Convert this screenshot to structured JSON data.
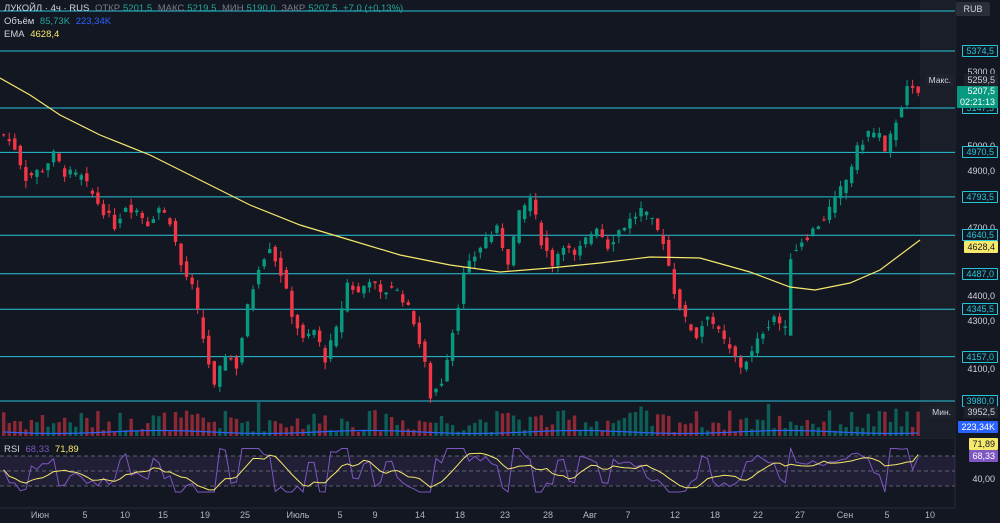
{
  "header": {
    "symbol": "ЛУКОЙЛ · 4ч · RUS",
    "open_label": "ОТКР",
    "open": "5201,5",
    "high_label": "МАКС",
    "high": "5219,5",
    "low_label": "МИН",
    "low": "5190,0",
    "close_label": "ЗАКР",
    "close": "5207,5",
    "change": "+7,0 (+0,13%)",
    "volume_label": "Объём",
    "volume_value": "85,73K",
    "volume_ma": "223,34K",
    "ema_label": "EMA",
    "ema_value": "4628,4",
    "currency": "RUB"
  },
  "price_axis": {
    "ticks": [
      "5300,0",
      "5000,0",
      "4900,0",
      "4700,0",
      "4400,0",
      "4300,0",
      "4100,0",
      "40,00"
    ],
    "max_label": "Макс.",
    "max_value": "5259,5",
    "min_label": "Мин.",
    "min_value": "3952,5",
    "current_price": "5207,5",
    "countdown": "02:21:13",
    "ema_tag": "4628,4",
    "volume_tag": "223,34K",
    "rsi_tags": [
      "71,89",
      "68,33"
    ]
  },
  "rsi": {
    "label": "RSI",
    "value": "68,33",
    "ma_value": "71,89"
  },
  "time_axis": [
    "Июн",
    "5",
    "10",
    "15",
    "19",
    "25",
    "Июль",
    "5",
    "9",
    "14",
    "18",
    "23",
    "28",
    "Авг",
    "7",
    "12",
    "18",
    "22",
    "27",
    "Сен",
    "5",
    "10"
  ],
  "chart_data": {
    "type": "candlestick",
    "title": "ЛУКОЙЛ · 4ч · RUS",
    "ylim": [
      3952.5,
      5374.5
    ],
    "levels": [
      5374.5,
      5147.5,
      4970.5,
      4793.5,
      4640.5,
      4487.0,
      4345.5,
      4157.0,
      3980.0
    ],
    "level_labels": [
      "5374,5",
      "5147,5",
      "4970,5",
      "4793,5",
      "4640,5",
      "4487,0",
      "4345,5",
      "4157,0",
      "3980,0"
    ],
    "close_path": [
      [
        0,
        5040
      ],
      [
        2,
        4990
      ],
      [
        4,
        4870
      ],
      [
        7,
        4905
      ],
      [
        9,
        4960
      ],
      [
        11,
        4890
      ],
      [
        14,
        4870
      ],
      [
        17,
        4770
      ],
      [
        20,
        4680
      ],
      [
        22,
        4760
      ],
      [
        24,
        4740
      ],
      [
        26,
        4690
      ],
      [
        28,
        4750
      ],
      [
        30,
        4700
      ],
      [
        32,
        4520
      ],
      [
        34,
        4430
      ],
      [
        36,
        4230
      ],
      [
        38,
        4030
      ],
      [
        40,
        4170
      ],
      [
        42,
        4120
      ],
      [
        44,
        4350
      ],
      [
        46,
        4520
      ],
      [
        48,
        4600
      ],
      [
        50,
        4490
      ],
      [
        52,
        4330
      ],
      [
        54,
        4220
      ],
      [
        56,
        4260
      ],
      [
        58,
        4150
      ],
      [
        60,
        4260
      ],
      [
        62,
        4450
      ],
      [
        64,
        4410
      ],
      [
        66,
        4470
      ],
      [
        68,
        4400
      ],
      [
        70,
        4440
      ],
      [
        72,
        4390
      ],
      [
        74,
        4300
      ],
      [
        76,
        4120
      ],
      [
        77,
        4000
      ],
      [
        79,
        4060
      ],
      [
        81,
        4260
      ],
      [
        83,
        4480
      ],
      [
        85,
        4560
      ],
      [
        87,
        4630
      ],
      [
        89,
        4660
      ],
      [
        91,
        4540
      ],
      [
        93,
        4720
      ],
      [
        95,
        4790
      ],
      [
        97,
        4620
      ],
      [
        99,
        4530
      ],
      [
        101,
        4610
      ],
      [
        103,
        4550
      ],
      [
        105,
        4620
      ],
      [
        107,
        4680
      ],
      [
        109,
        4600
      ],
      [
        111,
        4660
      ],
      [
        113,
        4700
      ],
      [
        115,
        4740
      ],
      [
        117,
        4690
      ],
      [
        119,
        4620
      ],
      [
        121,
        4420
      ],
      [
        123,
        4300
      ],
      [
        125,
        4240
      ],
      [
        127,
        4330
      ],
      [
        129,
        4250
      ],
      [
        131,
        4180
      ],
      [
        133,
        4120
      ],
      [
        135,
        4170
      ],
      [
        137,
        4260
      ],
      [
        139,
        4320
      ],
      [
        141,
        4260
      ],
      [
        142,
        4560
      ],
      [
        144,
        4620
      ],
      [
        146,
        4660
      ],
      [
        148,
        4710
      ],
      [
        150,
        4780
      ],
      [
        152,
        4860
      ],
      [
        154,
        4980
      ],
      [
        156,
        5050
      ],
      [
        158,
        5040
      ],
      [
        159,
        4960
      ],
      [
        161,
        5100
      ],
      [
        163,
        5220
      ],
      [
        165,
        5207.5
      ]
    ],
    "volume_ma": "223,34K",
    "rsi_last": 68.33,
    "rsi_ma_last": 71.89,
    "rsi_lines": [
      70,
      50,
      30
    ]
  }
}
